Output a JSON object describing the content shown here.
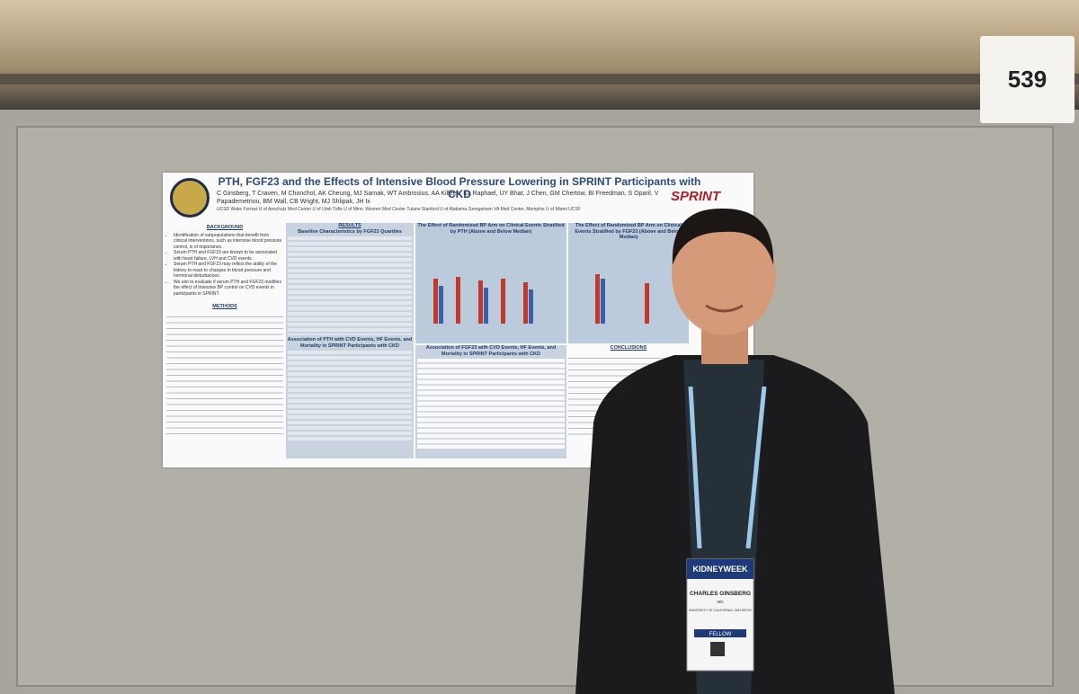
{
  "booth_number": "539",
  "poster": {
    "title": "PTH, FGF23 and the Effects of Intensive Blood Pressure Lowering in SPRINT Participants with CKD",
    "authors": "C Ginsberg, T Craven, M Chonchol, AK Cheung, MJ Sarnak, WT Ambrosius, AA Killeen, KL Raphael, UY Bhat, J Chen, GM Chertow, BI Freedman, S Oparil, V Papademetriou, BM Wall, CB Wright, MJ Shlipak, JH Ix",
    "affiliations": "UCSD Wake Forrest U of Anschutz Med Center U of Utah Tufts U of Minn. Wexner Med Center Tulane Stanford U of Alabama Georgetown VA Med Center, Memphis U of Miami UCSF",
    "logo": "SPRINT",
    "background_title": "BACKGROUND",
    "background": [
      "Identification of subpopulations that benefit from clinical interventions, such as intensive blood pressure control, is of importance.",
      "Serum PTH and FGF23 are known to be associated with heart failure, LVH and CVD events.",
      "Serum PTH and FGF23 may reflect the ability of the kidney to react to changes in blood pressure and hormonal disturbances.",
      "We aim to evaluate if serum PTH and FGF23 modifies the effect of intensive BP control on CVD events in participants in SPRINT."
    ],
    "methods_title": "METHODS",
    "results_title": "RESULTS",
    "table_title": "Baseline Characteristics by FGF23 Quartiles",
    "chart1_title": "The Effect of Randomized BP Arm on Clinical Events Stratified by PTH (Above and Below Median)",
    "chart2_title": "The Effect of Randomized BP Arm on Clinical Events Stratified by FGF23 (Above and Below Median)",
    "assoc_pth_title": "Association of PTH with CVD Events, HF Events, and Mortality in SPRINT Participants with CKD",
    "assoc_fgf_title": "Association of FGF23 with CVD Events, HF Events, and Mortality in SPRINT Participants with CKD",
    "conclusions_title": "CONCLUSIONS"
  },
  "badge": {
    "event": "KIDNEYWEEK",
    "name": "CHARLES GINSBERG",
    "degree": "MD",
    "org": "UNIVERSITY OF CALIFORNIA, SAN DIEGO",
    "role": "FELLOW"
  }
}
